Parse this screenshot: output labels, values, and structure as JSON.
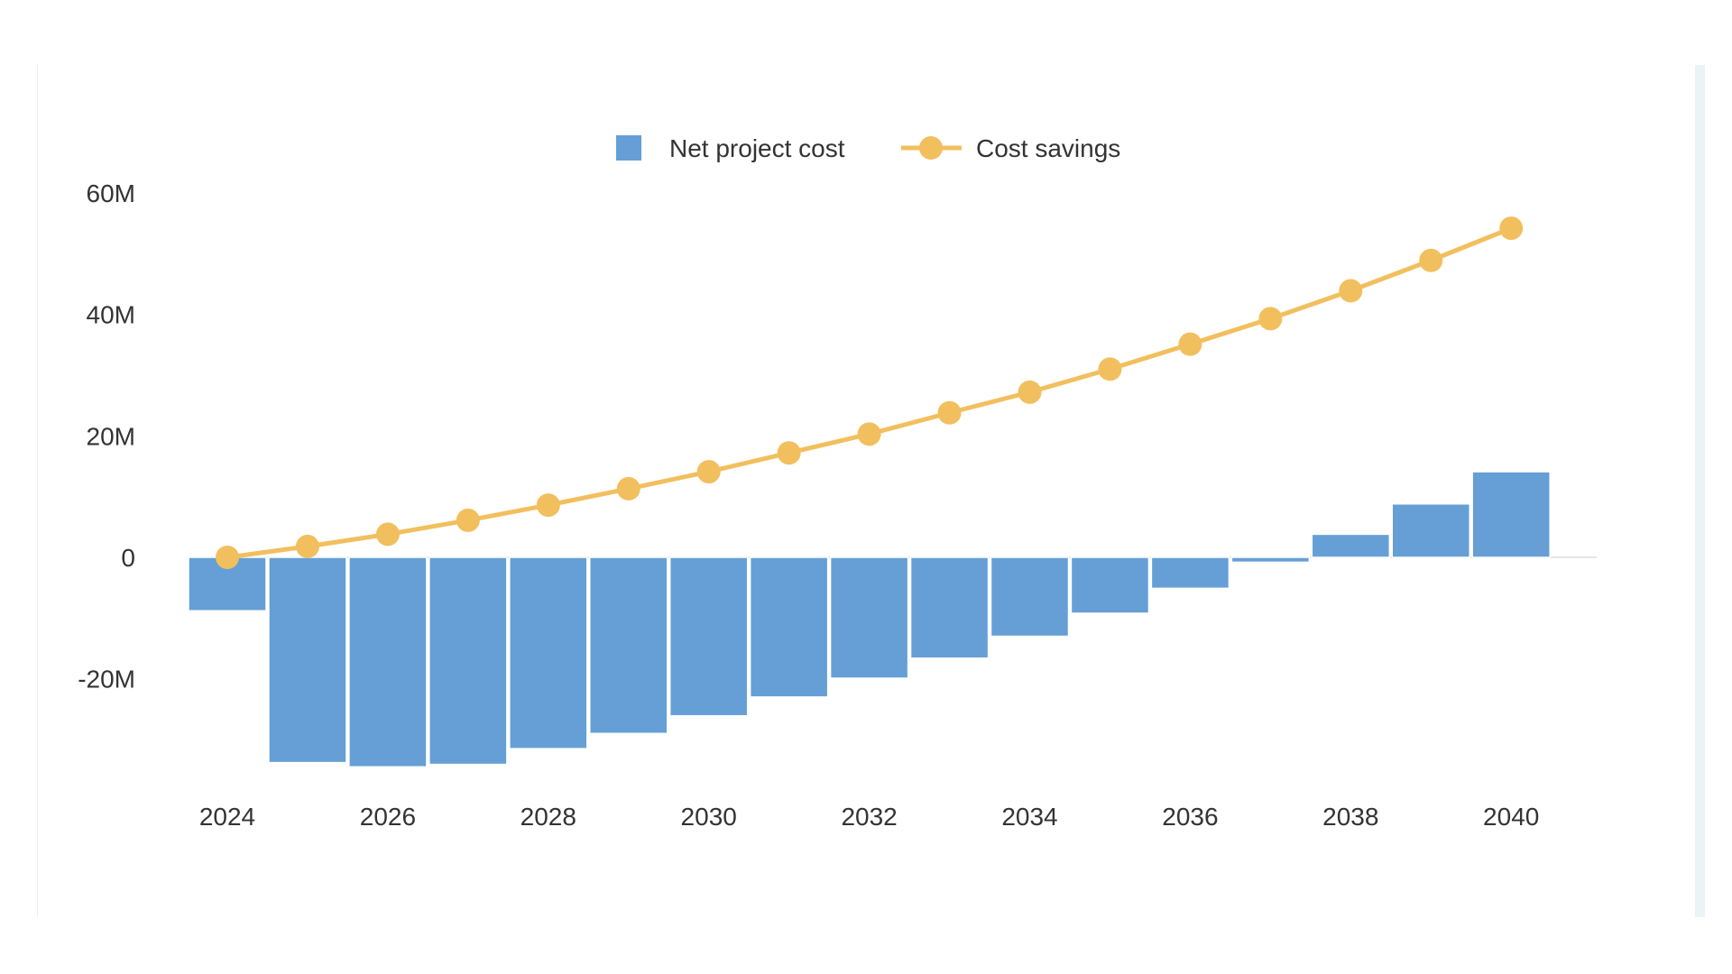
{
  "chart_data": {
    "type": "bar",
    "x": [
      2024,
      2025,
      2026,
      2027,
      2028,
      2029,
      2030,
      2031,
      2032,
      2033,
      2034,
      2035,
      2036,
      2037,
      2038,
      2039,
      2040
    ],
    "x_tick_labels": [
      "2024",
      "2026",
      "2028",
      "2030",
      "2032",
      "2034",
      "2036",
      "2038",
      "2040"
    ],
    "y_tick_labels": [
      "60M",
      "40M",
      "20M",
      "0",
      "-20M"
    ],
    "y_ticks": [
      60,
      40,
      20,
      0,
      -20
    ],
    "ylim": [
      -40,
      60
    ],
    "y_unit": "M",
    "grid": false,
    "legend_position": "top-center",
    "series": [
      {
        "name": "Net project cost",
        "type": "bar",
        "color": "#659fd6",
        "values": [
          -8.8,
          -33.8,
          -34.5,
          -34.1,
          -31.5,
          -29.0,
          -26.1,
          -23.0,
          -19.9,
          -16.6,
          -13.0,
          -9.2,
          -5.1,
          -0.8,
          3.8,
          8.8,
          14.1
        ]
      },
      {
        "name": "Cost savings",
        "type": "line",
        "color": "#f2bf5e",
        "values": [
          0.0,
          1.8,
          3.8,
          6.1,
          8.6,
          11.3,
          14.1,
          17.2,
          20.3,
          23.8,
          27.2,
          31.0,
          35.1,
          39.3,
          43.9,
          48.9,
          54.2
        ]
      }
    ]
  }
}
